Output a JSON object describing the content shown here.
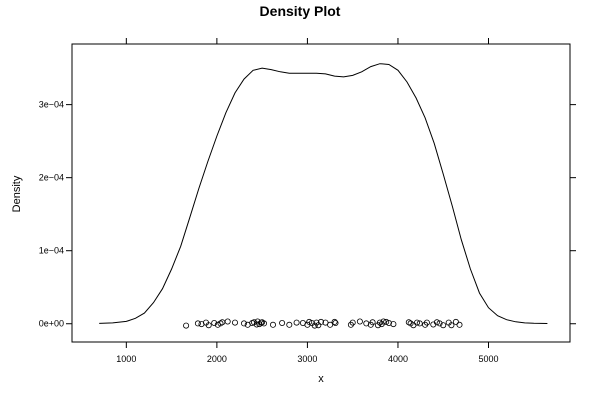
{
  "chart_data": {
    "type": "line",
    "title": "Density Plot",
    "xlabel": "x",
    "ylabel": "Density",
    "xlim": [
      400,
      5900
    ],
    "ylim": [
      -2.5e-05,
      0.000383
    ],
    "x_ticks": [
      1000,
      2000,
      3000,
      4000,
      5000
    ],
    "x_tick_labels": [
      "1000",
      "2000",
      "3000",
      "4000",
      "5000"
    ],
    "y_ticks": [
      0,
      0.0001,
      0.0002,
      0.0003
    ],
    "y_tick_labels": [
      "0e+00",
      "1e−04",
      "2e−04",
      "3e−04"
    ],
    "grid": false,
    "legend": "none",
    "series": [
      {
        "type": "density-curve",
        "x": [
          700,
          850,
          1000,
          1100,
          1200,
          1300,
          1400,
          1500,
          1600,
          1700,
          1800,
          1900,
          2000,
          2100,
          2200,
          2300,
          2400,
          2500,
          2600,
          2700,
          2800,
          2900,
          3000,
          3100,
          3200,
          3300,
          3400,
          3500,
          3600,
          3700,
          3800,
          3900,
          4000,
          4100,
          4200,
          4300,
          4400,
          4500,
          4600,
          4700,
          4800,
          4900,
          5000,
          5100,
          5200,
          5300,
          5400,
          5500,
          5650
        ],
        "y": [
          5e-07,
          1.2e-06,
          3.2e-06,
          7.5e-06,
          1.45e-05,
          2.9e-05,
          4.8e-05,
          7.5e-05,
          0.000106,
          0.000145,
          0.000185,
          0.000222,
          0.000257,
          0.000289,
          0.000316,
          0.000335,
          0.000347,
          0.00035,
          0.000348,
          0.000345,
          0.000343,
          0.000343,
          0.000343,
          0.000343,
          0.000342,
          0.000339,
          0.000338,
          0.00034,
          0.000345,
          0.000352,
          0.000356,
          0.000355,
          0.000347,
          0.000331,
          0.000309,
          0.000282,
          0.000247,
          0.000205,
          0.000161,
          0.000115,
          7.5e-05,
          4.2e-05,
          2.2e-05,
          1.1e-05,
          5.5e-06,
          2.7e-06,
          1.2e-06,
          6e-07,
          3e-07
        ]
      },
      {
        "type": "rug-points",
        "x": [
          1660,
          1790,
          1830,
          1880,
          1910,
          1970,
          2010,
          2040,
          2060,
          2120,
          2200,
          2300,
          2340,
          2390,
          2410,
          2440,
          2450,
          2470,
          2490,
          2500,
          2520,
          2620,
          2720,
          2800,
          2880,
          2950,
          3000,
          3020,
          3050,
          3080,
          3100,
          3120,
          3150,
          3200,
          3250,
          3300,
          3310,
          3480,
          3500,
          3580,
          3650,
          3700,
          3720,
          3780,
          3800,
          3820,
          3840,
          3870,
          3900,
          3950,
          4120,
          4140,
          4170,
          4210,
          4240,
          4300,
          4320,
          4390,
          4430,
          4460,
          4500,
          4560,
          4590,
          4640,
          4680
        ],
        "y": [
          -2.5e-06,
          5e-07,
          -5e-07,
          1.5e-06,
          -2e-06,
          1e-06,
          -1.5e-06,
          5e-07,
          2e-06,
          3e-06,
          1.5e-06,
          5e-07,
          -1.5e-06,
          1e-06,
          2e-06,
          -1e-06,
          3e-06,
          -5e-07,
          1.5e-06,
          2e-06,
          5e-07,
          -1.5e-06,
          1e-06,
          -1.5e-06,
          1.5e-06,
          1e-06,
          -1.5e-06,
          2.5e-06,
          1e-06,
          -2.5e-06,
          1.5e-06,
          -2e-06,
          2.5e-06,
          1.5e-06,
          -1.5e-06,
          2.5e-06,
          1e-06,
          -1.5e-06,
          1.5e-06,
          3e-06,
          5e-07,
          -1.5e-06,
          2e-06,
          -2e-06,
          1.5e-06,
          -5e-07,
          3e-06,
          2.5e-06,
          1e-06,
          -5e-07,
          2e-06,
          5e-07,
          -2e-06,
          1.5e-06,
          5e-07,
          -1.5e-06,
          1.5e-06,
          -1e-06,
          2e-06,
          5e-07,
          -2e-06,
          1.5e-06,
          -2e-06,
          2.5e-06,
          -1.5e-06
        ]
      }
    ]
  }
}
